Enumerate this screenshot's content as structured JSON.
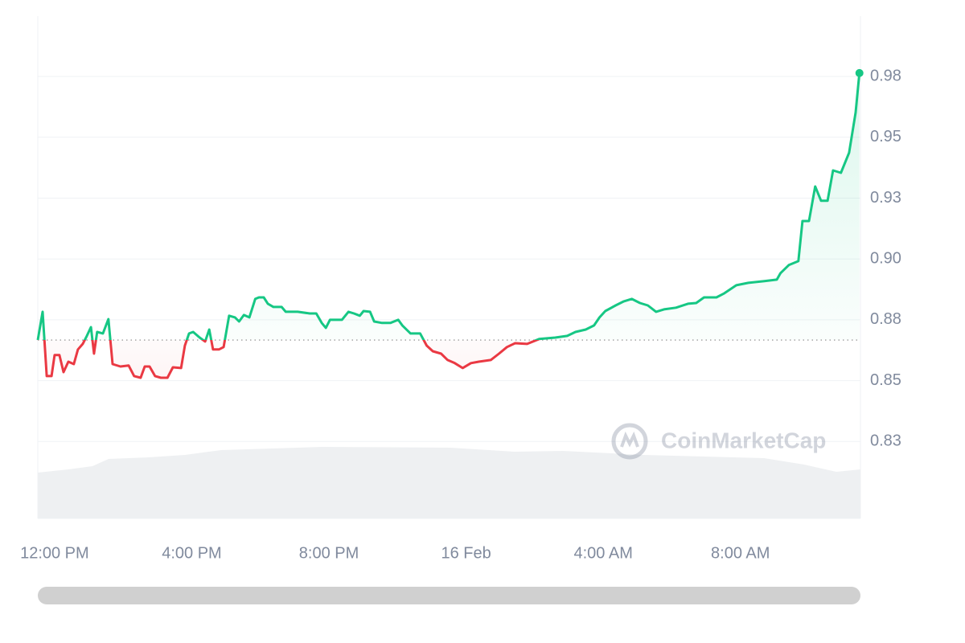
{
  "chart_data": {
    "type": "line",
    "watermark": "CoinMarketCap",
    "x": [
      -0.49,
      -0.35,
      -0.23,
      -0.09,
      0,
      0.14,
      0.26,
      0.4,
      0.56,
      0.68,
      0.82,
      0.94,
      1.06,
      1.15,
      1.24,
      1.41,
      1.57,
      1.69,
      1.92,
      2.16,
      2.32,
      2.51,
      2.63,
      2.77,
      2.93,
      3.1,
      3.29,
      3.45,
      3.69,
      3.8,
      3.92,
      4.04,
      4.23,
      4.39,
      4.51,
      4.62,
      4.79,
      4.93,
      5.09,
      5.26,
      5.38,
      5.52,
      5.68,
      5.85,
      5.96,
      6.1,
      6.22,
      6.38,
      6.62,
      6.74,
      7.09,
      7.44,
      7.63,
      7.79,
      7.91,
      8.03,
      8.38,
      8.57,
      8.73,
      8.9,
      9.01,
      9.2,
      9.32,
      9.55,
      9.79,
      10.02,
      10.14,
      10.38,
      10.66,
      10.85,
      11.03,
      11.27,
      11.46,
      11.67,
      11.9,
      12.14,
      12.37,
      12.72,
      12.96,
      13.19,
      13.43,
      13.78,
      14.13,
      14.6,
      14.95,
      15.19,
      15.49,
      15.73,
      15.89,
      16.06,
      16.36,
      16.6,
      16.83,
      17.07,
      17.3,
      17.54,
      17.77,
      18.12,
      18.47,
      18.71,
      18.94,
      19.3,
      19.53,
      19.88,
      20.23,
      20.7,
      21.06,
      21.17,
      21.41,
      21.69,
      21.81,
      22.0,
      22.18,
      22.35,
      22.54,
      22.7,
      22.93,
      23.17,
      23.36,
      23.47
    ],
    "series": [
      {
        "color": "#16c784",
        "color_below": "#ea3943",
        "values": [
          0.8667,
          0.8783,
          0.8519,
          0.8519,
          0.8605,
          0.8605,
          0.8535,
          0.8578,
          0.8568,
          0.8628,
          0.8651,
          0.8684,
          0.872,
          0.8611,
          0.87,
          0.8694,
          0.8753,
          0.8568,
          0.8558,
          0.8562,
          0.8519,
          0.8512,
          0.8558,
          0.8558,
          0.8519,
          0.8512,
          0.8512,
          0.8555,
          0.8552,
          0.8644,
          0.8694,
          0.87,
          0.8677,
          0.8661,
          0.871,
          0.8628,
          0.8628,
          0.8638,
          0.8767,
          0.876,
          0.8743,
          0.877,
          0.876,
          0.8836,
          0.8842,
          0.8842,
          0.8816,
          0.8803,
          0.8803,
          0.8783,
          0.8783,
          0.8776,
          0.8776,
          0.8737,
          0.8717,
          0.875,
          0.875,
          0.8783,
          0.8776,
          0.8767,
          0.8786,
          0.8783,
          0.8743,
          0.8737,
          0.8737,
          0.875,
          0.8727,
          0.8694,
          0.8694,
          0.8644,
          0.8621,
          0.8611,
          0.8585,
          0.8572,
          0.8552,
          0.8572,
          0.8578,
          0.8585,
          0.8611,
          0.8638,
          0.8654,
          0.8651,
          0.8671,
          0.8677,
          0.8684,
          0.87,
          0.871,
          0.8727,
          0.876,
          0.8786,
          0.8809,
          0.8826,
          0.8836,
          0.8819,
          0.8809,
          0.8783,
          0.8793,
          0.88,
          0.8816,
          0.8819,
          0.8842,
          0.8842,
          0.8859,
          0.8892,
          0.8902,
          0.8909,
          0.8915,
          0.8942,
          0.8975,
          0.8991,
          0.9156,
          0.9156,
          0.9298,
          0.9239,
          0.9239,
          0.9364,
          0.9354,
          0.9437,
          0.9602,
          0.9764
        ]
      }
    ],
    "baseline": 0.8667,
    "xlim": [
      -0.49,
      23.5
    ],
    "xticks": [
      {
        "value": 0,
        "label": "12:00 PM"
      },
      {
        "value": 4,
        "label": "4:00 PM"
      },
      {
        "value": 8,
        "label": "8:00 PM"
      },
      {
        "value": 12,
        "label": "16 Feb"
      },
      {
        "value": 16,
        "label": "4:00 AM"
      },
      {
        "value": 20,
        "label": "8:00 AM"
      }
    ],
    "ylim": [
      0.7934,
      0.9998
    ],
    "yticks": [
      {
        "value": 0.825,
        "label": "0.83"
      },
      {
        "value": 0.85,
        "label": "0.85"
      },
      {
        "value": 0.875,
        "label": "0.88"
      },
      {
        "value": 0.9,
        "label": "0.90"
      },
      {
        "value": 0.925,
        "label": "0.93"
      },
      {
        "value": 0.95,
        "label": "0.95"
      },
      {
        "value": 0.975,
        "label": "0.98"
      }
    ],
    "grid": true
  }
}
